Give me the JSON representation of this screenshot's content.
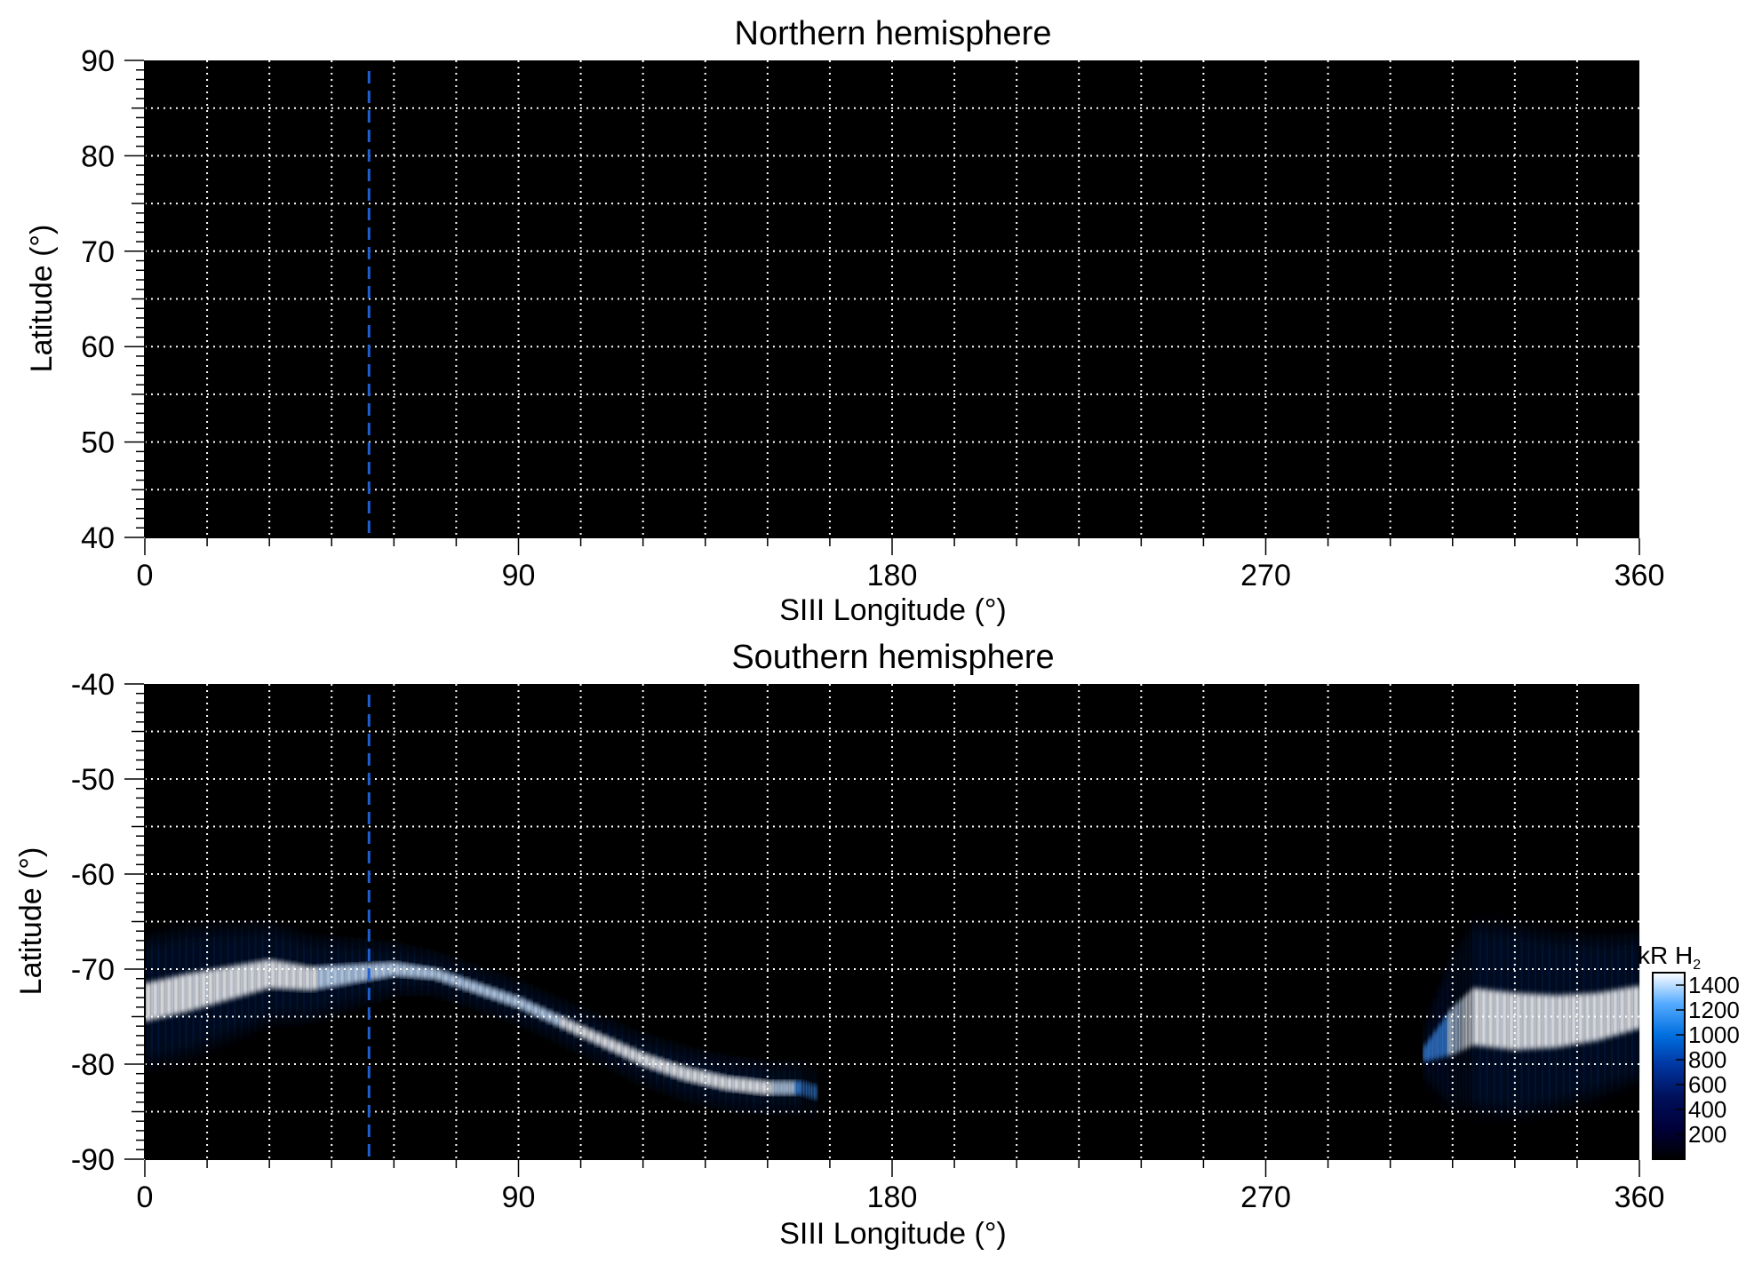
{
  "chart_data": [
    {
      "type": "heatmap",
      "title": "Northern hemisphere",
      "xlabel": "SIII Longitude (°)",
      "ylabel": "Latitude (°)",
      "xlim": [
        0,
        360
      ],
      "ylim": [
        40,
        90
      ],
      "xticks": [
        0,
        90,
        180,
        270,
        360
      ],
      "yticks": [
        40,
        50,
        60,
        70,
        80,
        90
      ],
      "x_minor_step": 15,
      "y_minor_step": 1,
      "grid": true,
      "grid_x_step": 15,
      "grid_y_step": 5,
      "marker_line": {
        "x": 54,
        "style": "dashed",
        "color": "#1f5fd0"
      },
      "emission": []
    },
    {
      "type": "heatmap",
      "title": "Southern hemisphere",
      "xlabel": "SIII Longitude (°)",
      "ylabel": "Latitude (°)",
      "xlim": [
        0,
        360
      ],
      "ylim": [
        -90,
        -40
      ],
      "xticks": [
        0,
        90,
        180,
        270,
        360
      ],
      "yticks": [
        -90,
        -80,
        -70,
        -60,
        -50,
        -40
      ],
      "x_minor_step": 15,
      "y_minor_step": 1,
      "grid": true,
      "grid_x_step": 15,
      "grid_y_step": 5,
      "marker_line": {
        "x": 54,
        "style": "dashed",
        "color": "#1f5fd0"
      },
      "emission": [
        {
          "lon": 0,
          "lat": -73.5,
          "width": 4.0,
          "intensity": 1400
        },
        {
          "lon": 10,
          "lat": -72.5,
          "width": 4.0,
          "intensity": 1400
        },
        {
          "lon": 20,
          "lat": -71.5,
          "width": 3.5,
          "intensity": 1400
        },
        {
          "lon": 30,
          "lat": -70.5,
          "width": 3.0,
          "intensity": 1400
        },
        {
          "lon": 40,
          "lat": -71.0,
          "width": 2.5,
          "intensity": 1300
        },
        {
          "lon": 50,
          "lat": -70.5,
          "width": 2.0,
          "intensity": 1200
        },
        {
          "lon": 60,
          "lat": -70.0,
          "width": 1.5,
          "intensity": 1200
        },
        {
          "lon": 70,
          "lat": -70.5,
          "width": 1.2,
          "intensity": 1100
        },
        {
          "lon": 80,
          "lat": -72.0,
          "width": 1.2,
          "intensity": 1100
        },
        {
          "lon": 90,
          "lat": -73.5,
          "width": 1.2,
          "intensity": 1200
        },
        {
          "lon": 100,
          "lat": -75.5,
          "width": 1.2,
          "intensity": 1300
        },
        {
          "lon": 110,
          "lat": -77.5,
          "width": 1.3,
          "intensity": 1400
        },
        {
          "lon": 120,
          "lat": -79.5,
          "width": 1.4,
          "intensity": 1400
        },
        {
          "lon": 130,
          "lat": -81.0,
          "width": 1.5,
          "intensity": 1400
        },
        {
          "lon": 140,
          "lat": -82.0,
          "width": 1.5,
          "intensity": 1400
        },
        {
          "lon": 150,
          "lat": -82.5,
          "width": 1.5,
          "intensity": 1300
        },
        {
          "lon": 158,
          "lat": -82.5,
          "width": 1.5,
          "intensity": 900
        },
        {
          "lon": 162,
          "lat": -83.0,
          "width": 1.5,
          "intensity": 500
        },
        {
          "lon": 308,
          "lat": -79.0,
          "width": 1.5,
          "intensity": 500
        },
        {
          "lon": 315,
          "lat": -76.5,
          "width": 5.0,
          "intensity": 1200
        },
        {
          "lon": 320,
          "lat": -75.0,
          "width": 6.0,
          "intensity": 1400
        },
        {
          "lon": 330,
          "lat": -75.5,
          "width": 6.0,
          "intensity": 1400
        },
        {
          "lon": 340,
          "lat": -75.5,
          "width": 5.5,
          "intensity": 1400
        },
        {
          "lon": 350,
          "lat": -75.0,
          "width": 5.0,
          "intensity": 1400
        },
        {
          "lon": 360,
          "lat": -74.0,
          "width": 4.5,
          "intensity": 1300
        }
      ],
      "colorbar": {
        "title": "kR H",
        "title_subscript": "2",
        "ticks": [
          200,
          400,
          600,
          800,
          1000,
          1200,
          1400
        ],
        "range": [
          0,
          1500
        ],
        "colors": [
          "#000000",
          "#00003a",
          "#00105a",
          "#0035a0",
          "#0070e0",
          "#55aaff",
          "#ffffff"
        ]
      }
    }
  ]
}
